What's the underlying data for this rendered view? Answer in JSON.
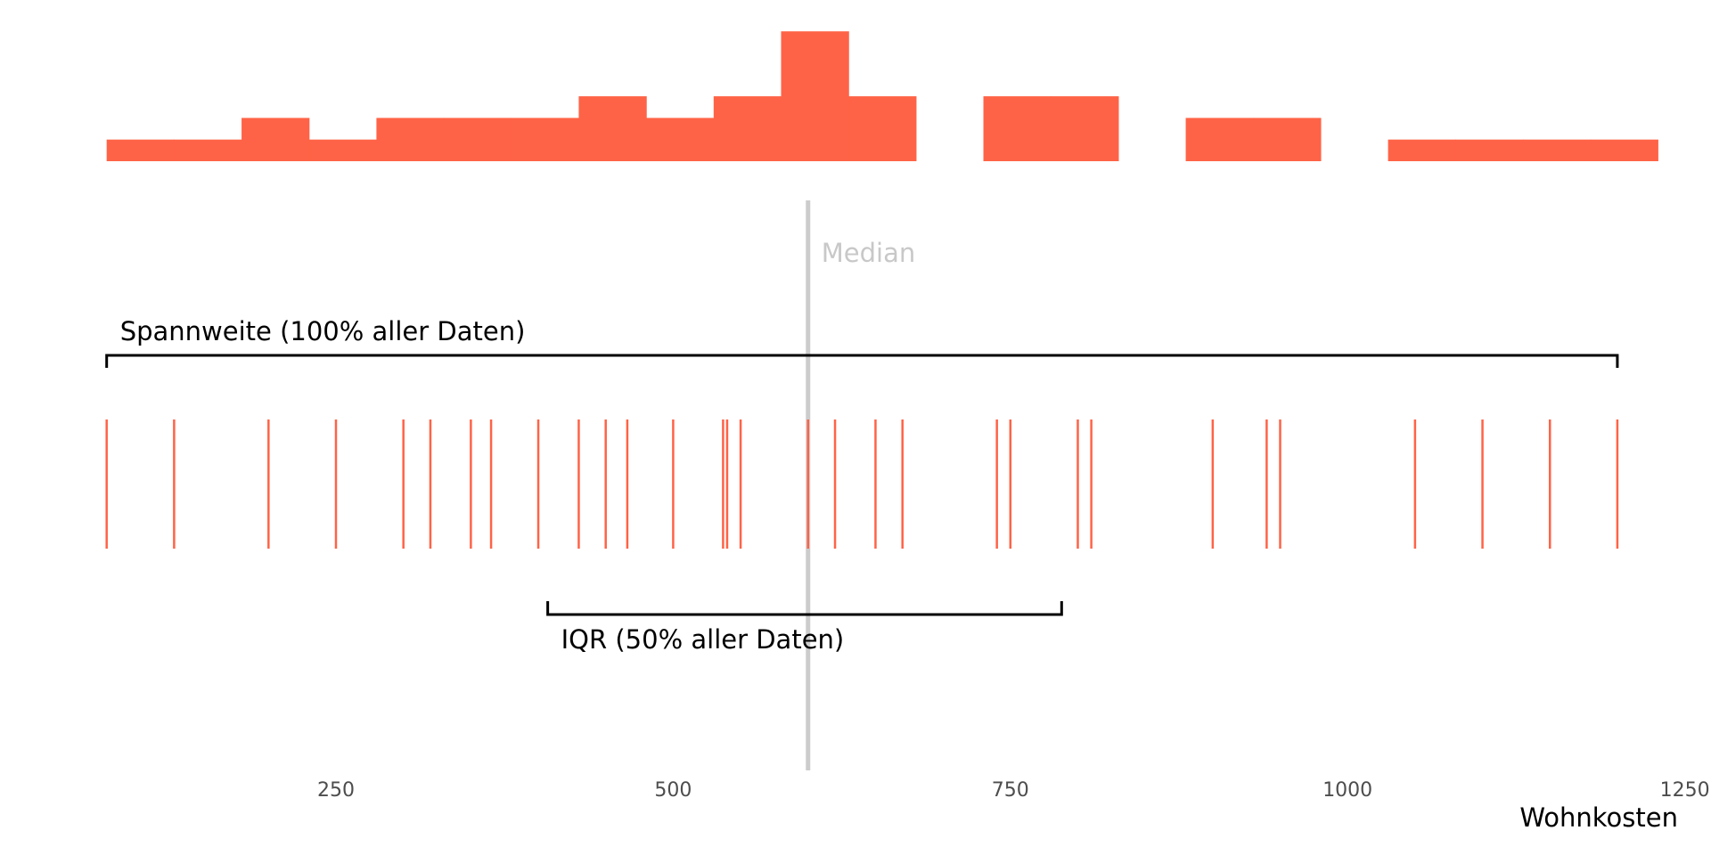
{
  "chart_data": {
    "type": "histogram + rug plot",
    "xlabel": "Wohnkosten",
    "xlim": [
      100,
      1250
    ],
    "xticks": [
      250,
      500,
      750,
      1000,
      1250
    ],
    "colors": {
      "bars": "#FF6347",
      "median_line": "#cccccc",
      "median_text": "#c8c8c8",
      "brackets": "#000000"
    },
    "histogram": {
      "bins": [
        {
          "from": 80,
          "to": 130,
          "count": 1
        },
        {
          "from": 130,
          "to": 180,
          "count": 1
        },
        {
          "from": 180,
          "to": 230,
          "count": 2
        },
        {
          "from": 230,
          "to": 280,
          "count": 1
        },
        {
          "from": 280,
          "to": 330,
          "count": 2
        },
        {
          "from": 330,
          "to": 380,
          "count": 2
        },
        {
          "from": 380,
          "to": 430,
          "count": 2
        },
        {
          "from": 430,
          "to": 480,
          "count": 3
        },
        {
          "from": 480,
          "to": 530,
          "count": 2
        },
        {
          "from": 530,
          "to": 580,
          "count": 3
        },
        {
          "from": 580,
          "to": 630,
          "count": 6
        },
        {
          "from": 630,
          "to": 680,
          "count": 3
        },
        {
          "from": 680,
          "to": 730,
          "count": 0
        },
        {
          "from": 730,
          "to": 780,
          "count": 3
        },
        {
          "from": 780,
          "to": 830,
          "count": 3
        },
        {
          "from": 830,
          "to": 880,
          "count": 0
        },
        {
          "from": 880,
          "to": 930,
          "count": 2
        },
        {
          "from": 930,
          "to": 980,
          "count": 2
        },
        {
          "from": 980,
          "to": 1030,
          "count": 0
        },
        {
          "from": 1030,
          "to": 1080,
          "count": 1
        },
        {
          "from": 1080,
          "to": 1130,
          "count": 1
        },
        {
          "from": 1130,
          "to": 1180,
          "count": 1
        },
        {
          "from": 1180,
          "to": 1230,
          "count": 1
        }
      ]
    },
    "rug_values": [
      80,
      130,
      200,
      250,
      300,
      320,
      350,
      365,
      400,
      430,
      450,
      466,
      500,
      537,
      540,
      550,
      600,
      620,
      650,
      670,
      740,
      750,
      800,
      810,
      900,
      940,
      950,
      1050,
      1100,
      1150,
      1200
    ],
    "median": {
      "value": 600,
      "label": "Median"
    },
    "range": {
      "from": 80,
      "to": 1200,
      "label": "Spannweite (100% aller Daten)"
    },
    "iqr": {
      "from": 407,
      "to": 788,
      "label": "IQR (50% aller Daten)"
    }
  }
}
